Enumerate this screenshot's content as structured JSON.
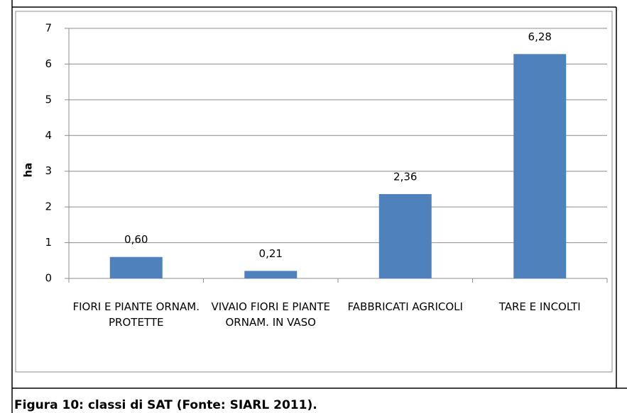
{
  "chart_data": {
    "type": "bar",
    "y_label": "ha",
    "categories": [
      "FIORI E PIANTE ORNAM. PROTETTE",
      "VIVAIO FIORI E PIANTE ORNAM. IN VASO",
      "FABBRICATI AGRICOLI",
      "TARE E INCOLTI"
    ],
    "values": [
      0.6,
      0.21,
      2.36,
      6.28
    ],
    "value_labels": [
      "0,60",
      "0,21",
      "2,36",
      "6,28"
    ],
    "color": "#4f81bd",
    "ylim": [
      0,
      7
    ],
    "yticks": [
      0,
      1,
      2,
      3,
      4,
      5,
      6,
      7
    ],
    "grid": true
  },
  "caption": "Figura 10: classi di SAT (Fonte: SIARL 2011)."
}
